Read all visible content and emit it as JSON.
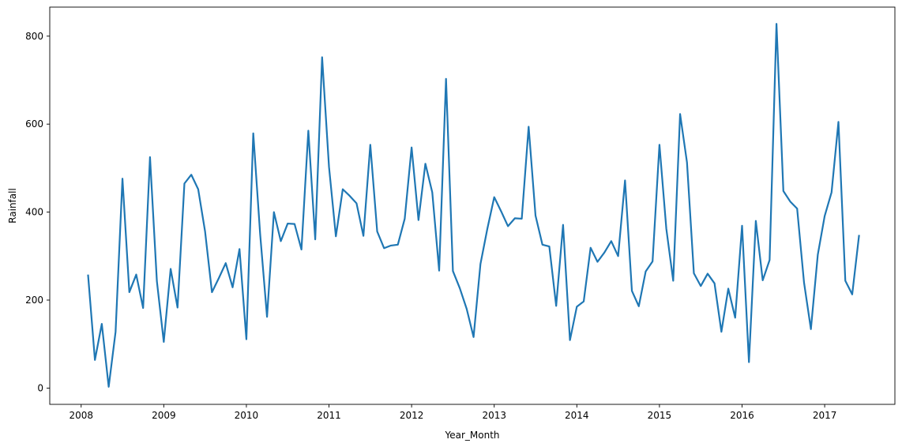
{
  "chart_data": {
    "type": "line",
    "title": "",
    "xlabel": "Year_Month",
    "ylabel": "Rainfall",
    "xlim": [
      2007.62,
      2017.85
    ],
    "ylim": [
      -37,
      866
    ],
    "xticks": [
      {
        "value": 2008,
        "label": "2008"
      },
      {
        "value": 2009,
        "label": "2009"
      },
      {
        "value": 2010,
        "label": "2010"
      },
      {
        "value": 2011,
        "label": "2011"
      },
      {
        "value": 2012,
        "label": "2012"
      },
      {
        "value": 2013,
        "label": "2013"
      },
      {
        "value": 2014,
        "label": "2014"
      },
      {
        "value": 2015,
        "label": "2015"
      },
      {
        "value": 2016,
        "label": "2016"
      },
      {
        "value": 2017,
        "label": "2017"
      }
    ],
    "yticks": [
      {
        "value": 0,
        "label": "0"
      },
      {
        "value": 200,
        "label": "200"
      },
      {
        "value": 400,
        "label": "400"
      },
      {
        "value": 600,
        "label": "600"
      },
      {
        "value": 800,
        "label": "800"
      }
    ],
    "grid": false,
    "legend": false,
    "series": [
      {
        "color": "#1f77b4",
        "start_year": 2008,
        "start_month": 1,
        "values": [
          258,
          64,
          146,
          3,
          128,
          476,
          218,
          258,
          182,
          525,
          243,
          105,
          271,
          183,
          465,
          485,
          452,
          356,
          218,
          250,
          284,
          229,
          316,
          111,
          579,
          350,
          162,
          400,
          334,
          374,
          373,
          315,
          585,
          338,
          752,
          503,
          345,
          452,
          437,
          420,
          346,
          553,
          356,
          318,
          324,
          326,
          385,
          547,
          382,
          510,
          445,
          267,
          703,
          266,
          227,
          180,
          116,
          282,
          362,
          434,
          402,
          368,
          386,
          385,
          594,
          392,
          326,
          322,
          187,
          371,
          109,
          185,
          197,
          319,
          287,
          308,
          334,
          300,
          472,
          221,
          186,
          265,
          288,
          553,
          362,
          244,
          623,
          513,
          261,
          232,
          260,
          238,
          128,
          226,
          160,
          369,
          59,
          380,
          245,
          291,
          828,
          448,
          424,
          408,
          240,
          134,
          303,
          391,
          445,
          605,
          244,
          213,
          348
        ]
      }
    ]
  }
}
